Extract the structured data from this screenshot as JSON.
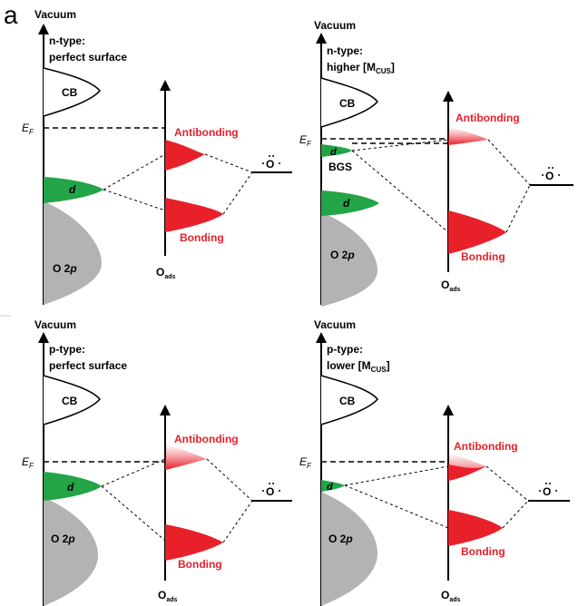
{
  "figure_label": "a",
  "common": {
    "vacuum": "Vacuum",
    "cb": "CB",
    "ef_main": "E",
    "ef_sub": "F",
    "d": "d",
    "o2p_main": "O 2",
    "o2p_italic": "p",
    "antibonding": "Antibonding",
    "bonding": "Bonding",
    "oads_main": "O",
    "oads_sub": "ads",
    "o_atom": "O"
  },
  "panels": [
    {
      "title_line1": "n-type:",
      "title_line2": "perfect surface",
      "title_sub": "",
      "title_end": ""
    },
    {
      "title_line1": "n-type:",
      "title_line2": "higher [M",
      "title_sub": "CUS",
      "title_end": "]",
      "bgs": "BGS"
    },
    {
      "title_line1": "p-type:",
      "title_line2": "perfect surface",
      "title_sub": "",
      "title_end": ""
    },
    {
      "title_line1": "p-type:",
      "title_line2": "lower [M",
      "title_sub": "CUS",
      "title_end": "]"
    }
  ],
  "colors": {
    "antibonding_red": "#e8202a",
    "d_green": "#22a447",
    "o2p_gray": "#b3b3b3",
    "line": "#000000"
  }
}
